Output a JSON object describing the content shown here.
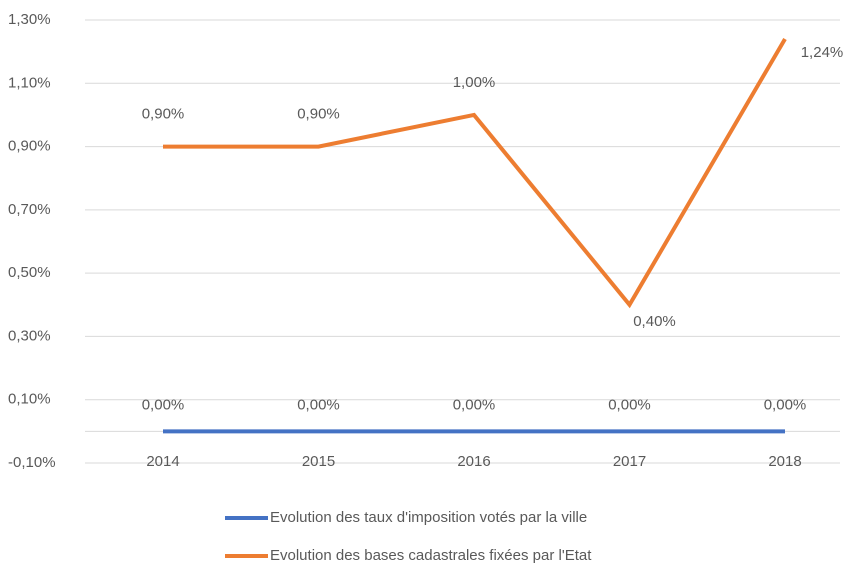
{
  "chart_data": {
    "type": "line",
    "categories": [
      "2014",
      "2015",
      "2016",
      "2017",
      "2018"
    ],
    "series": [
      {
        "name": "Evolution des taux d'imposition votés par la ville",
        "color": "#4472c4",
        "values": [
          0,
          0,
          0,
          0,
          0
        ],
        "value_labels": [
          "0,00%",
          "0,00%",
          "0,00%",
          "0,00%",
          "0,00%"
        ]
      },
      {
        "name": "Evolution des bases cadastrales fixées par l'Etat",
        "color": "#ed7d31",
        "values": [
          0.9,
          0.9,
          1.0,
          0.4,
          1.24
        ],
        "value_labels": [
          "0,90%",
          "0,90%",
          "1,00%",
          "0,40%",
          "1,24%"
        ]
      }
    ],
    "ylim": [
      -0.1,
      1.3
    ],
    "yticks": [
      {
        "value": -0.1,
        "label": "-0,10%"
      },
      {
        "value": 0.1,
        "label": "0,10%"
      },
      {
        "value": 0.3,
        "label": "0,30%"
      },
      {
        "value": 0.5,
        "label": "0,50%"
      },
      {
        "value": 0.7,
        "label": "0,70%"
      },
      {
        "value": 0.9,
        "label": "0,90%"
      },
      {
        "value": 1.1,
        "label": "1,10%"
      },
      {
        "value": 1.3,
        "label": "1,30%"
      }
    ],
    "grid": true,
    "legend": "bottom"
  }
}
